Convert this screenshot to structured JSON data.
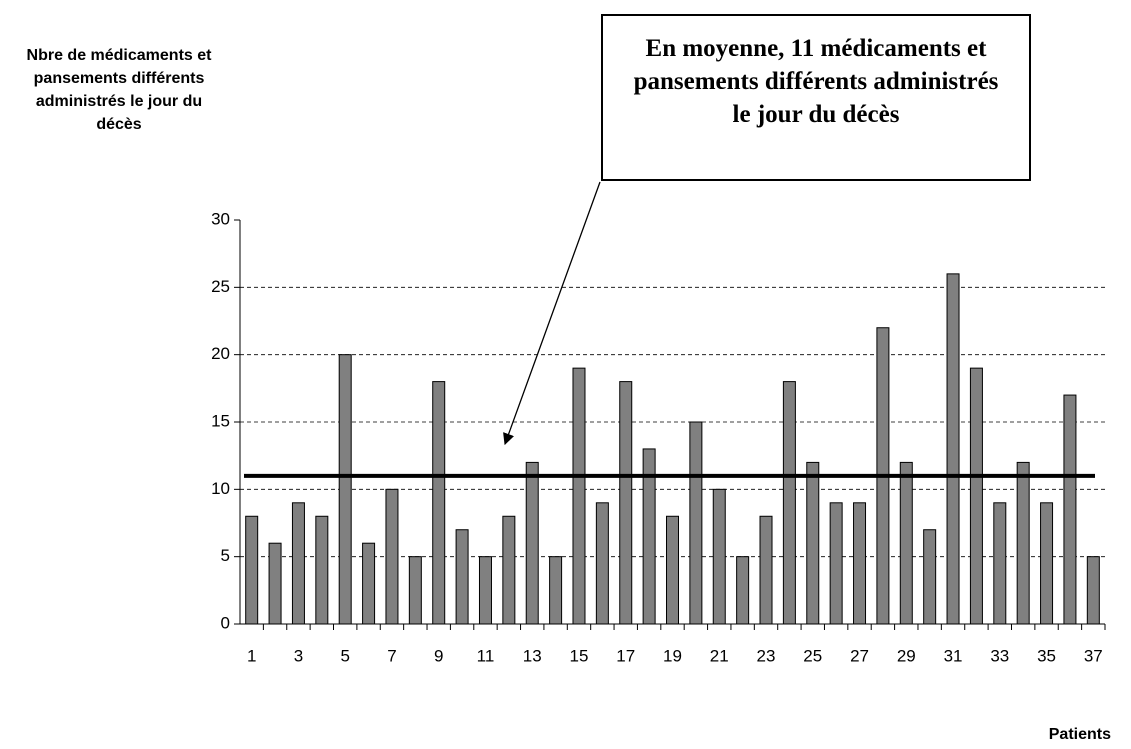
{
  "chart_data": {
    "type": "bar",
    "y_label": "Nbre de médicaments et pansements différents administrés le jour du décès",
    "x_label": "Patients",
    "annotation": "En moyenne, 11 médicaments et pansements différents administrés le jour du décès",
    "categories": [
      1,
      null,
      3,
      null,
      5,
      null,
      7,
      null,
      9,
      null,
      11,
      null,
      13,
      null,
      15,
      null,
      17,
      null,
      19,
      null,
      21,
      null,
      23,
      null,
      25,
      null,
      27,
      null,
      29,
      null,
      31,
      null,
      33,
      null,
      35,
      null,
      37
    ],
    "values": [
      8,
      6,
      9,
      8,
      20,
      6,
      10,
      5,
      18,
      7,
      5,
      8,
      12,
      5,
      19,
      9,
      18,
      13,
      8,
      15,
      10,
      5,
      8,
      18,
      12,
      9,
      9,
      22,
      12,
      7,
      26,
      19,
      9,
      12,
      9,
      17,
      5
    ],
    "mean": 11,
    "color": "#808080",
    "ylim": [
      0,
      30
    ],
    "yticks": [
      0,
      5,
      10,
      15,
      20,
      25,
      30
    ],
    "grid": true
  }
}
